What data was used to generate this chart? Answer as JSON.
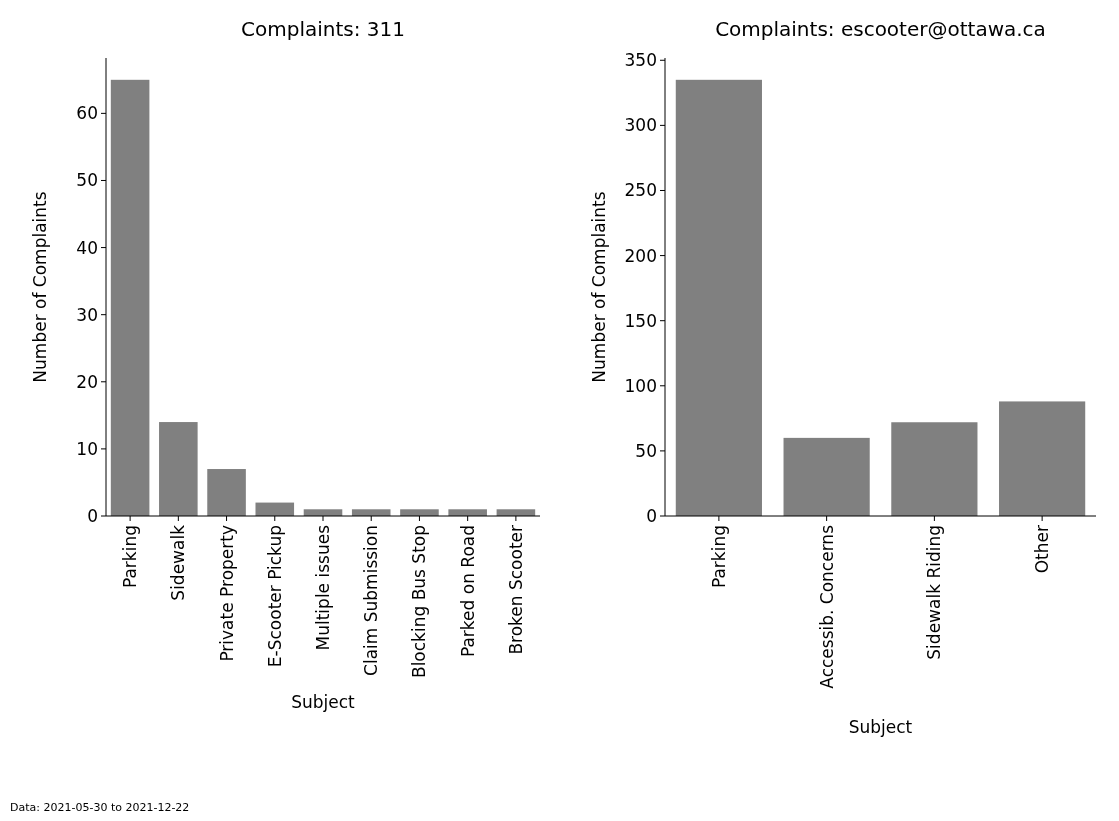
{
  "chart_data": [
    {
      "type": "bar",
      "title": "Complaints: 311",
      "xlabel": "Subject",
      "ylabel": "Number of Complaints",
      "categories": [
        "Parking",
        "Sidewalk",
        "Private Property",
        "E-Scooter Pickup",
        "Multiple issues",
        "Claim Submission",
        "Blocking Bus Stop",
        "Parked on Road",
        "Broken Scooter"
      ],
      "values": [
        65,
        14,
        7,
        2,
        1,
        1,
        1,
        1,
        1
      ],
      "color": "#808080",
      "ylim": [
        0,
        68.25
      ],
      "yticks": [
        0,
        10,
        20,
        30,
        40,
        50,
        60
      ],
      "grid": false,
      "annotations": [
        "Data: 2021-05-30 to 2021-12-22"
      ]
    },
    {
      "type": "bar",
      "title": "Complaints: escooter@ottawa.ca",
      "xlabel": "Subject",
      "ylabel": "Number of Complaints",
      "categories": [
        "Parking",
        "Accessib. Concerns",
        "Sidewalk Riding",
        "Other"
      ],
      "values": [
        335,
        60,
        72,
        88
      ],
      "color": "#808080",
      "ylim": [
        0,
        351.75
      ],
      "yticks": [
        0,
        50,
        100,
        150,
        200,
        250,
        300,
        350
      ],
      "grid": false
    }
  ]
}
